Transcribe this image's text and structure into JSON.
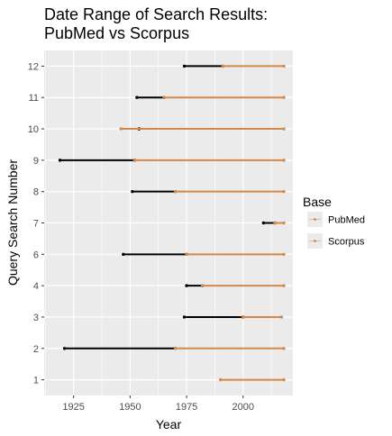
{
  "chart_data": {
    "type": "line",
    "title_line1": "Date Range of Search Results:",
    "title_line2": "PubMed vs Scorpus",
    "xlabel": "Year",
    "ylabel": "Query Search Number",
    "xlim": [
      1912,
      2022
    ],
    "x_ticks": [
      1925,
      1950,
      1975,
      2000
    ],
    "categories": [
      "1",
      "2",
      "3",
      "4",
      "6",
      "7",
      "8",
      "9",
      "10",
      "11",
      "12"
    ],
    "grid": true,
    "legend_position": "right",
    "legend_title": "Base",
    "series": [
      {
        "name": "PubMed",
        "color": "#000000",
        "ranges": [
          {
            "query": "12",
            "start": 1974,
            "end": 1991
          },
          {
            "query": "11",
            "start": 1953,
            "end": 1965
          },
          {
            "query": "10",
            "start": 1954,
            "end": 1954
          },
          {
            "query": "9",
            "start": 1919,
            "end": 1952
          },
          {
            "query": "8",
            "start": 1951,
            "end": 1970
          },
          {
            "query": "7",
            "start": 2009,
            "end": 2014
          },
          {
            "query": "6",
            "start": 1947,
            "end": 1975
          },
          {
            "query": "4",
            "start": 1975,
            "end": 1982
          },
          {
            "query": "3",
            "start": 1974,
            "end": 2000
          },
          {
            "query": "2",
            "start": 1921,
            "end": 1970
          }
        ]
      },
      {
        "name": "Scorpus",
        "color": "#d2894a",
        "ranges": [
          {
            "query": "12",
            "start": 1991,
            "end": 2018
          },
          {
            "query": "11",
            "start": 1965,
            "end": 2018
          },
          {
            "query": "10",
            "start": 1946,
            "end": 2018
          },
          {
            "query": "9",
            "start": 1952,
            "end": 2018
          },
          {
            "query": "8",
            "start": 1970,
            "end": 2018
          },
          {
            "query": "7",
            "start": 2014,
            "end": 2018
          },
          {
            "query": "6",
            "start": 1975,
            "end": 2018
          },
          {
            "query": "4",
            "start": 1982,
            "end": 2018
          },
          {
            "query": "3",
            "start": 2000,
            "end": 2017
          },
          {
            "query": "2",
            "start": 1970,
            "end": 2018
          },
          {
            "query": "1",
            "start": 1990,
            "end": 2018
          }
        ]
      }
    ]
  }
}
